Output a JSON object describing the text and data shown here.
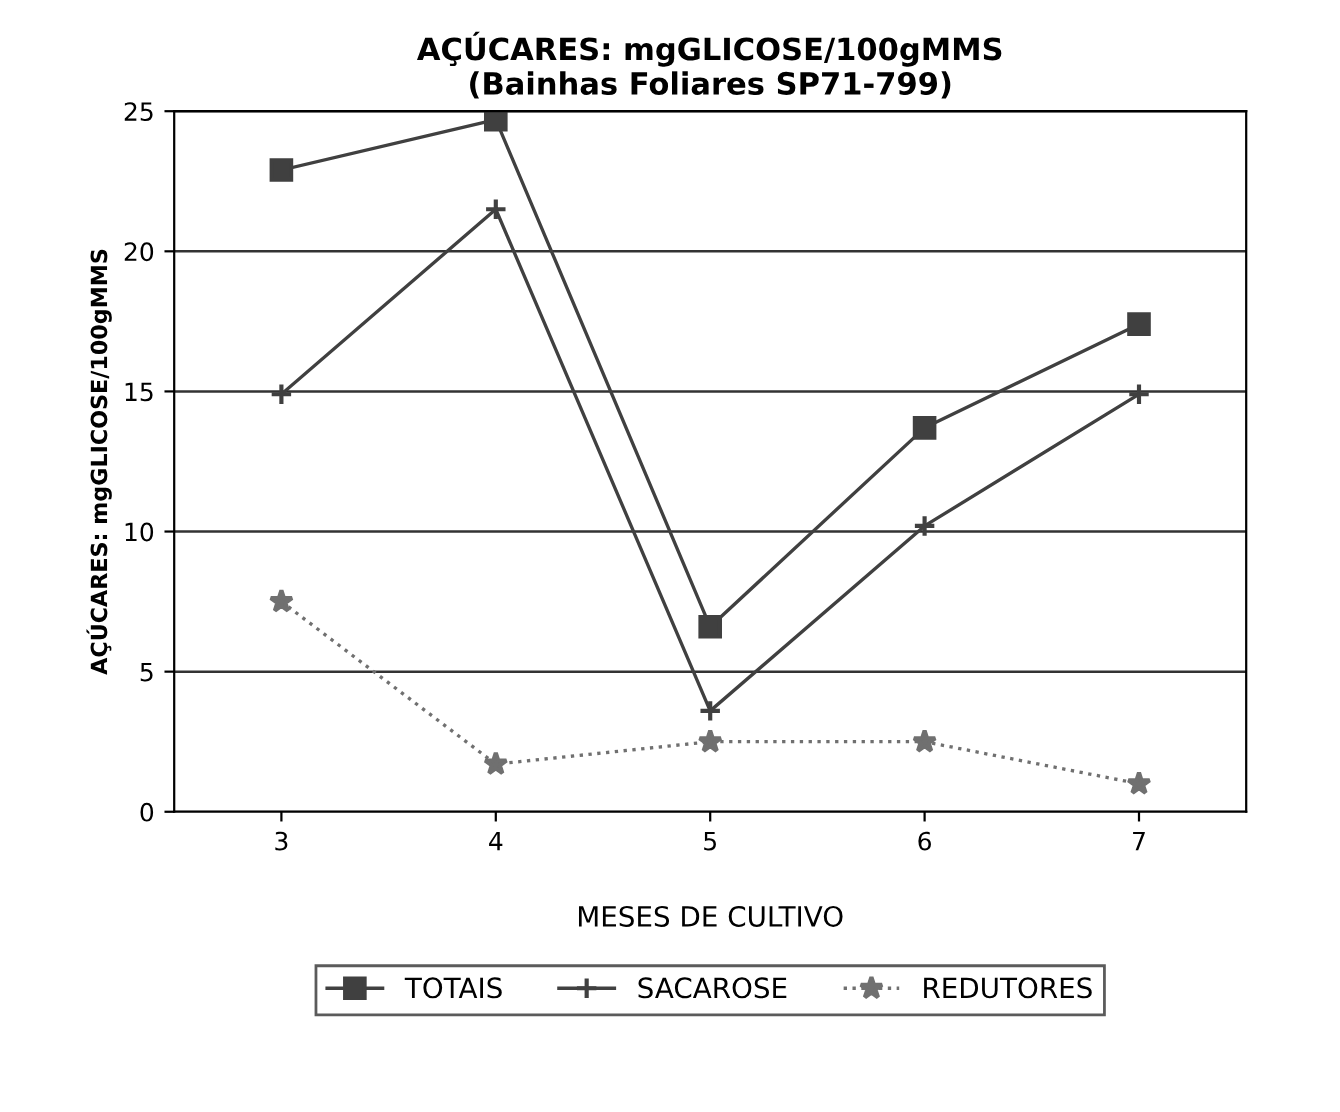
{
  "chart_data": {
    "type": "line",
    "title": "AÇÚCARES: mgGLICOSE/100gMMS\n(Bainhas Foliares SP71-799)",
    "xlabel": "MESES DE CULTIVO",
    "ylabel": "AÇÚCARES: mgGLICOSE/100gMMS",
    "x": [
      3,
      4,
      5,
      6,
      7
    ],
    "series": [
      {
        "name": "TOTAIS",
        "color": "#404040",
        "marker": "square",
        "line_style": "solid",
        "values": [
          22.9,
          24.7,
          6.6,
          13.7,
          17.4
        ]
      },
      {
        "name": "SACAROSE",
        "color": "#404040",
        "marker": "cross",
        "line_style": "solid",
        "values": [
          14.9,
          21.5,
          3.6,
          10.2,
          14.9
        ]
      },
      {
        "name": "REDUTORES",
        "color": "#707070",
        "marker": "star",
        "line_style": "dotted",
        "values": [
          7.5,
          1.7,
          2.5,
          2.5,
          1.0
        ]
      }
    ],
    "xlim": [
      2.5,
      7.5
    ],
    "xticks": [
      3,
      4,
      5,
      6,
      7
    ],
    "ylim": [
      0,
      25
    ],
    "yticks": [
      0,
      5,
      10,
      15,
      20,
      25
    ],
    "grid": "y",
    "legend": "bottom"
  }
}
